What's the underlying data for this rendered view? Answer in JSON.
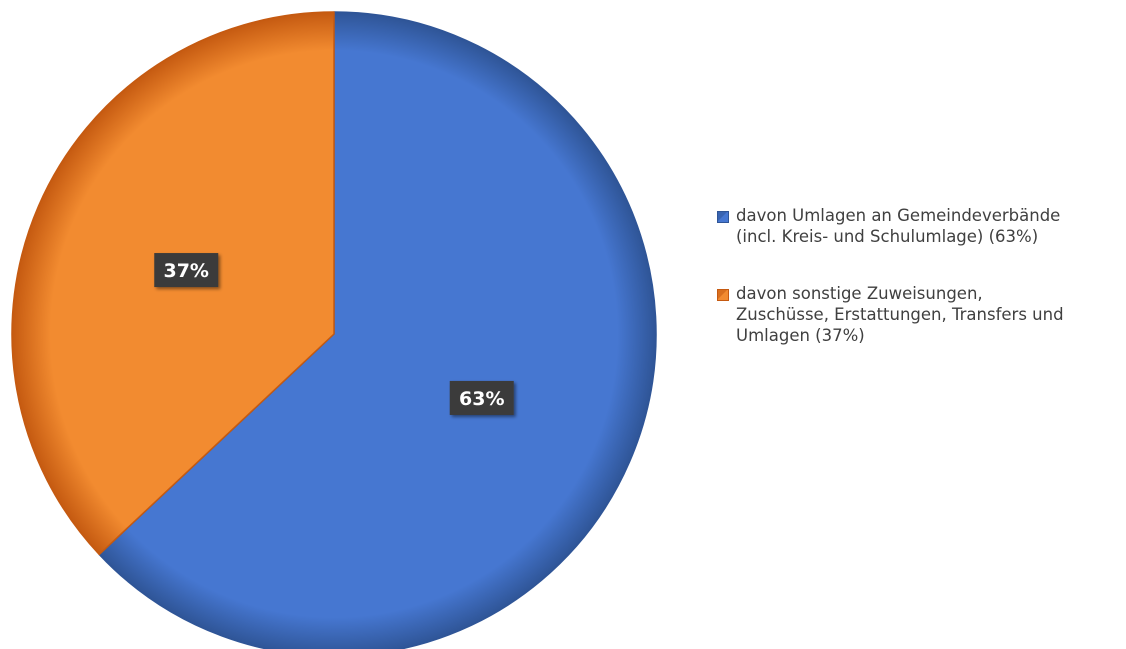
{
  "chart_data": {
    "type": "pie",
    "title": "",
    "start_angle_deg": 0,
    "direction": "clockwise",
    "legend_position": "right",
    "slices": [
      {
        "label": "davon Umlagen an Gemeindeverbände (incl. Kreis- und Schulumlage) (63%)",
        "legend_lines": [
          "davon Umlagen an Gemeindeverbände",
          "(incl. Kreis- und Schulumlage) (63%)"
        ],
        "value": 63,
        "data_label": "63%",
        "color": "#4677d1",
        "shade": "#2f5597"
      },
      {
        "label": "davon sonstige Zuweisungen, Zuschüsse, Erstattungen, Transfers und Umlagen (37%)",
        "legend_lines": [
          "davon sonstige Zuweisungen,",
          "Zuschüsse, Erstattungen, Transfers und",
          "Umlagen (37%)"
        ],
        "value": 37,
        "data_label": "37%",
        "color": "#f28b30",
        "shade": "#c55a11"
      }
    ]
  }
}
